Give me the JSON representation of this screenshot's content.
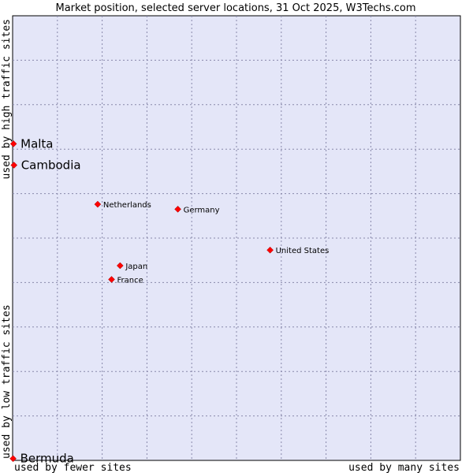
{
  "chart_data": {
    "type": "scatter",
    "title": "Market position, selected server locations, 31 Oct 2025, W3Techs.com",
    "xlabel_low": "used by fewer sites",
    "xlabel_high": "used by many sites",
    "ylabel_low": "used by low traffic sites",
    "ylabel_high": "used by high traffic sites",
    "xlim": [
      0,
      100
    ],
    "ylim": [
      0,
      100
    ],
    "grid": true,
    "point_color": "#ff0000",
    "plot_background": "#e4e6f8",
    "points": [
      {
        "name": "Malta",
        "x": 0.2,
        "y": 71.2,
        "emphasis": true
      },
      {
        "name": "Cambodia",
        "x": 0.3,
        "y": 66.4,
        "emphasis": true
      },
      {
        "name": "Netherlands",
        "x": 19.0,
        "y": 57.6,
        "emphasis": false
      },
      {
        "name": "Germany",
        "x": 36.9,
        "y": 56.5,
        "emphasis": false
      },
      {
        "name": "United States",
        "x": 57.5,
        "y": 47.3,
        "emphasis": false
      },
      {
        "name": "Japan",
        "x": 24.0,
        "y": 43.8,
        "emphasis": false
      },
      {
        "name": "France",
        "x": 22.1,
        "y": 40.7,
        "emphasis": false
      },
      {
        "name": "Bermuda",
        "x": 0.1,
        "y": 0.4,
        "emphasis": true
      }
    ]
  }
}
